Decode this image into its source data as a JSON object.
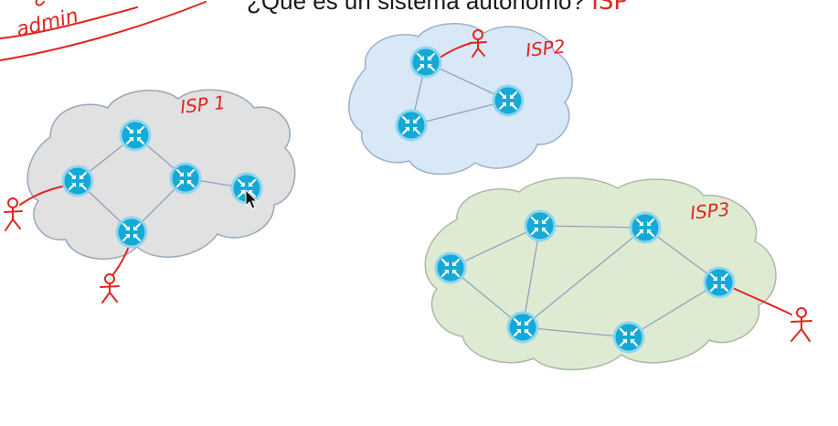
{
  "title": {
    "text": "¿Qué es un sistema autónomo?",
    "scribble": "ISP"
  },
  "annotations": {
    "corner_scribble": "admin",
    "corner_scribble_2": "BGP"
  },
  "clouds": [
    {
      "id": "isp1",
      "label": "ISP 1",
      "fill": "#e1e1e1",
      "stroke": "#97a7bb"
    },
    {
      "id": "isp2",
      "label": "ISP2",
      "fill": "#d9e8f6",
      "stroke": "#9aafc8"
    },
    {
      "id": "isp3",
      "label": "ISP3",
      "fill": "#deebd2",
      "stroke": "#a8b9a5"
    }
  ],
  "colors": {
    "router": "#14a9d6",
    "router_ring": "#8fd6ee",
    "link": "#8ea3bd",
    "ink": "#e0261f"
  },
  "icons": [
    "router-icon",
    "person-icon",
    "mouse-cursor-icon"
  ]
}
